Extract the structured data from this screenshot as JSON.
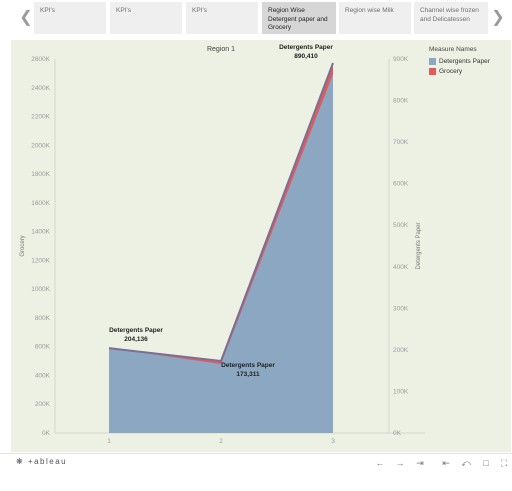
{
  "story": {
    "tabs": [
      {
        "label": "KPI's",
        "active": false
      },
      {
        "label": "KPI's",
        "active": false
      },
      {
        "label": "KPI's",
        "active": false
      },
      {
        "label": "Region Wise Detergent paper and Grocery",
        "active": true
      },
      {
        "label": "Region wise Milk",
        "active": false
      },
      {
        "label": "Channel wise frozen and Delicatessen",
        "active": false
      }
    ],
    "prev_icon": "chevron-left-icon",
    "next_icon": "chevron-right-icon"
  },
  "legend": {
    "title": "Measure Names",
    "items": [
      {
        "label": "Detergents Paper",
        "color": "#8ba7c1"
      },
      {
        "label": "Grocery",
        "color": "#e05a5e"
      }
    ]
  },
  "chart_data": {
    "type": "area",
    "title": "Region 1",
    "x": [
      1,
      2,
      3
    ],
    "x_ticks": [
      "1",
      "2",
      "3"
    ],
    "y_left": {
      "label": "Grocery",
      "range": [
        0,
        2600000
      ],
      "ticks": [
        "0K",
        "200K",
        "400K",
        "600K",
        "800K",
        "1000K",
        "1200K",
        "1400K",
        "1600K",
        "1800K",
        "2000K",
        "2200K",
        "2400K",
        "2600K"
      ]
    },
    "y_right": {
      "label": "Detergents Paper",
      "range": [
        0,
        900000
      ],
      "ticks": [
        "0K",
        "100K",
        "200K",
        "300K",
        "400K",
        "500K",
        "600K",
        "700K",
        "800K",
        "900K"
      ]
    },
    "series": [
      {
        "name": "Detergents Paper",
        "axis": "right",
        "color": "#8ba7c1",
        "values": [
          204136,
          173311,
          890410
        ]
      },
      {
        "name": "Grocery",
        "axis": "left",
        "color": "#e05a5e",
        "values": [
          590000,
          480000,
          2495000
        ]
      }
    ],
    "data_labels": [
      {
        "series": "Detergents Paper",
        "x": 1,
        "name": "Detergents Paper",
        "value": "204,136"
      },
      {
        "series": "Detergents Paper",
        "x": 2,
        "name": "Detergents Paper",
        "value": "173,311"
      },
      {
        "series": "Detergents Paper",
        "x": 3,
        "name": "Detergents Paper",
        "value": "890,410"
      }
    ],
    "grid": false,
    "legend_position": "top-right"
  },
  "toolbar": {
    "logo": "+ableau",
    "buttons": [
      "undo-icon",
      "redo-icon",
      "revert-icon",
      "revert-all-icon",
      "share-icon",
      "comment-icon",
      "fullscreen-icon"
    ]
  }
}
